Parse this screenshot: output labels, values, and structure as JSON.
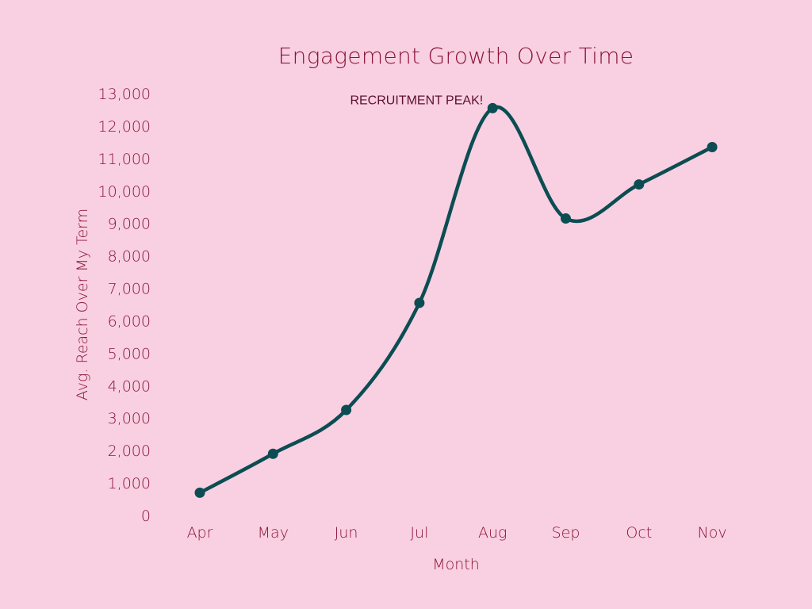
{
  "chart_data": {
    "type": "line",
    "title": "Engagement Growth Over Time",
    "xlabel": "Month",
    "ylabel": "Avg. Reach Over My Term",
    "categories": [
      "Apr",
      "May",
      "Jun",
      "Jul",
      "Aug",
      "Sep",
      "Oct",
      "Nov"
    ],
    "series": [
      {
        "name": "Avg. Reach",
        "values": [
          700,
          1900,
          3250,
          6550,
          12550,
          9150,
          10200,
          11350
        ]
      }
    ],
    "ylim": [
      0,
      13000
    ],
    "yticks": [
      0,
      1000,
      2000,
      3000,
      4000,
      5000,
      6000,
      7000,
      8000,
      9000,
      10000,
      11000,
      12000,
      13000
    ],
    "ytick_labels": [
      "0",
      "1,000",
      "2,000",
      "3,000",
      "4,000",
      "5,000",
      "6,000",
      "7,000",
      "8,000",
      "9,000",
      "10,000",
      "11,000",
      "12,000",
      "13,000"
    ],
    "grid": false,
    "curve": "smooth",
    "annotations": [
      {
        "text": "RECRUITMENT PEAK!",
        "category": "Aug",
        "value": 12550
      }
    ],
    "colors": {
      "background": "#f9d0e1",
      "line": "#0b4d52",
      "text": "#8a1538",
      "annotation": "#5e0f2c"
    }
  }
}
